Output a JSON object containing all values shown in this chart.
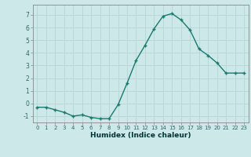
{
  "x": [
    0,
    1,
    2,
    3,
    4,
    5,
    6,
    7,
    8,
    9,
    10,
    11,
    12,
    13,
    14,
    15,
    16,
    17,
    18,
    19,
    20,
    21,
    22,
    23
  ],
  "y": [
    -0.3,
    -0.3,
    -0.5,
    -0.7,
    -1.0,
    -0.9,
    -1.1,
    -1.2,
    -1.2,
    -0.1,
    1.6,
    3.4,
    4.6,
    5.9,
    6.9,
    7.1,
    6.6,
    5.8,
    4.3,
    3.8,
    3.2,
    2.4,
    2.4,
    2.4
  ],
  "xlabel": "Humidex (Indice chaleur)",
  "ylim": [
    -1.5,
    7.8
  ],
  "xlim": [
    -0.5,
    23.5
  ],
  "yticks": [
    -1,
    0,
    1,
    2,
    3,
    4,
    5,
    6,
    7
  ],
  "xticks": [
    0,
    1,
    2,
    3,
    4,
    5,
    6,
    7,
    8,
    9,
    10,
    11,
    12,
    13,
    14,
    15,
    16,
    17,
    18,
    19,
    20,
    21,
    22,
    23
  ],
  "line_color": "#1a7a6e",
  "marker": "+",
  "marker_size": 3,
  "bg_color": "#cce8e8",
  "grid_color": "#b8d8d8",
  "spine_color": "#888888",
  "tick_color": "#336666",
  "label_color": "#003333"
}
